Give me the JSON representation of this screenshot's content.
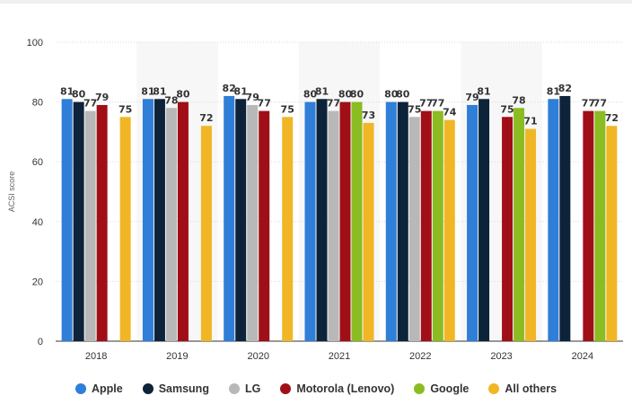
{
  "chart_data": {
    "type": "bar",
    "title": "",
    "xlabel": "",
    "ylabel": "ACSI score",
    "ylim": [
      0,
      100
    ],
    "yticks": [
      0,
      20,
      40,
      60,
      80,
      100
    ],
    "grid": true,
    "legend_position": "bottom",
    "categories": [
      "2018",
      "2019",
      "2020",
      "2021",
      "2022",
      "2023",
      "2024"
    ],
    "series": [
      {
        "name": "Apple",
        "color": "#2f7ed8",
        "values": [
          81,
          81,
          82,
          80,
          80,
          79,
          81
        ]
      },
      {
        "name": "Samsung",
        "color": "#0d233a",
        "values": [
          80,
          81,
          81,
          81,
          80,
          81,
          82
        ]
      },
      {
        "name": "LG",
        "color": "#b8b8b8",
        "values": [
          77,
          78,
          79,
          77,
          75,
          null,
          null
        ]
      },
      {
        "name": "Motorola (Lenovo)",
        "color": "#a00f17",
        "values": [
          79,
          80,
          77,
          80,
          77,
          75,
          77
        ]
      },
      {
        "name": "Google",
        "color": "#8bbc21",
        "values": [
          null,
          null,
          null,
          80,
          77,
          78,
          77
        ]
      },
      {
        "name": "All others",
        "color": "#f0b625",
        "values": [
          75,
          72,
          75,
          73,
          74,
          71,
          72
        ]
      }
    ]
  }
}
